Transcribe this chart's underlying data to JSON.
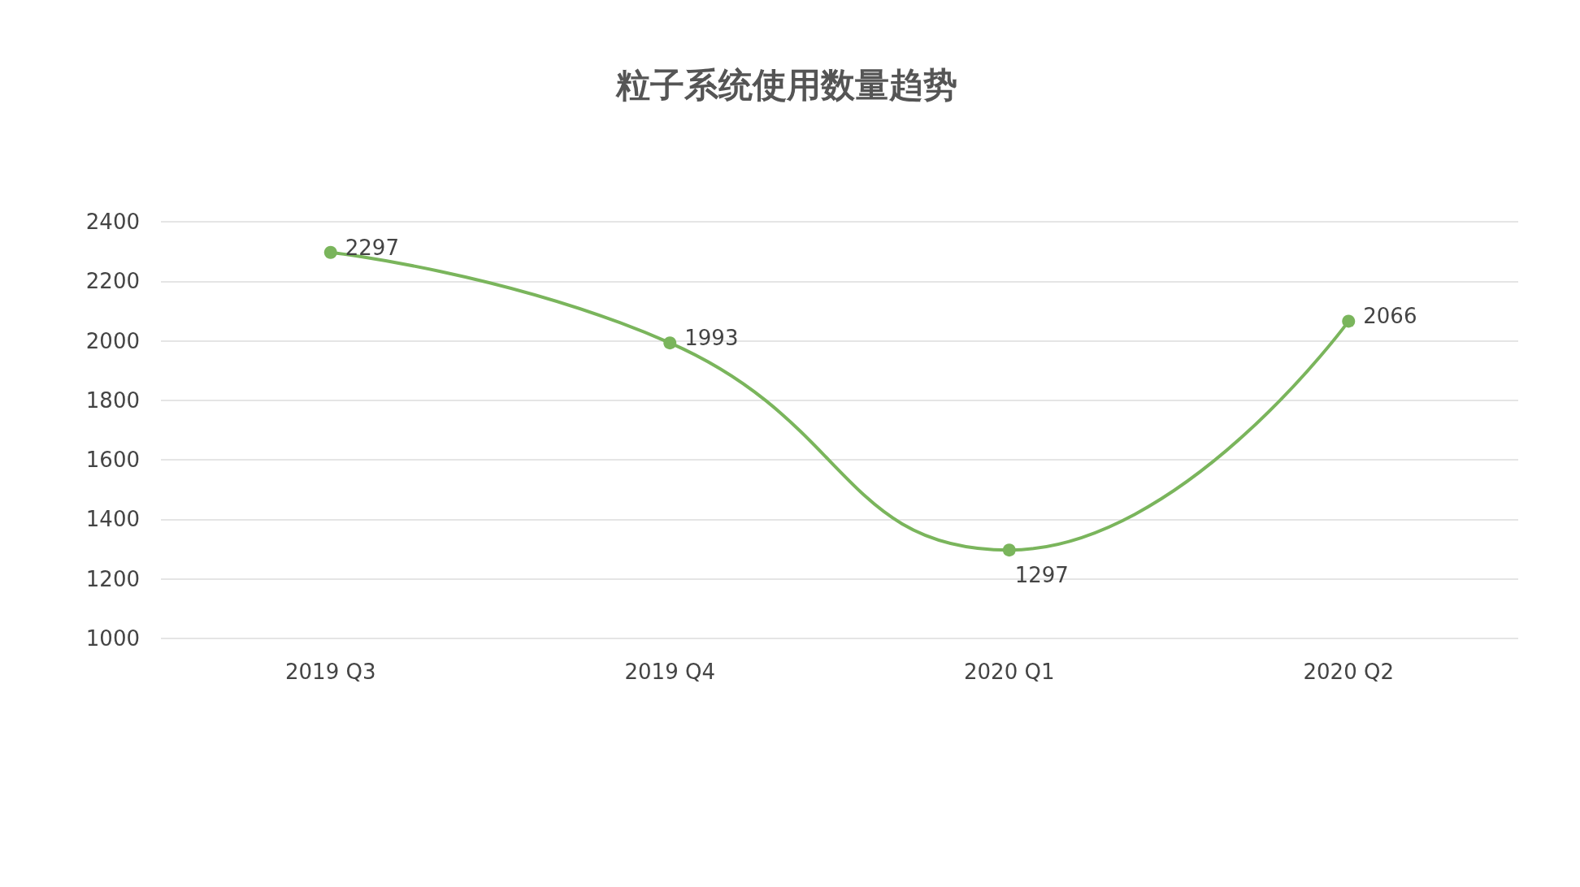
{
  "chart_data": {
    "type": "line",
    "title": "粒子系统使用数量趋势",
    "categories": [
      "2019 Q3",
      "2019 Q4",
      "2020 Q1",
      "2020 Q2"
    ],
    "series": [
      {
        "color": "#7ab55c",
        "values": [
          2297,
          1993,
          1297,
          2066
        ]
      }
    ],
    "ylim": [
      1000,
      2400
    ],
    "yticks": [
      1000,
      1200,
      1400,
      1600,
      1800,
      2000,
      2200,
      2400
    ],
    "grid": "y",
    "marker": "circle",
    "line_style": "solid",
    "data_labels": true
  }
}
